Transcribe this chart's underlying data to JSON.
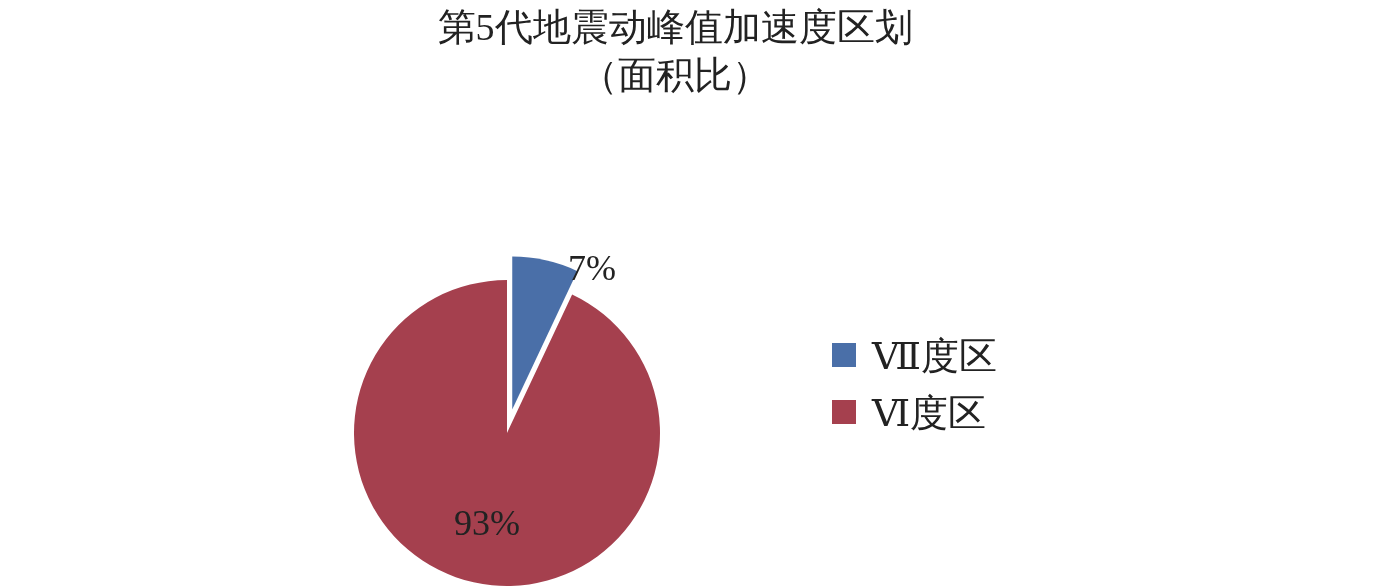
{
  "chart_data": {
    "type": "pie",
    "title": "第5代地震动峰值加速度区划",
    "subtitle": "（面积比）",
    "categories": [
      "Ⅶ度区",
      "Ⅵ度区"
    ],
    "values": [
      7,
      93
    ],
    "colors": [
      "#4a6fa8",
      "#a5404e"
    ],
    "value_labels": [
      "7%",
      "93%"
    ],
    "legend": "right"
  }
}
